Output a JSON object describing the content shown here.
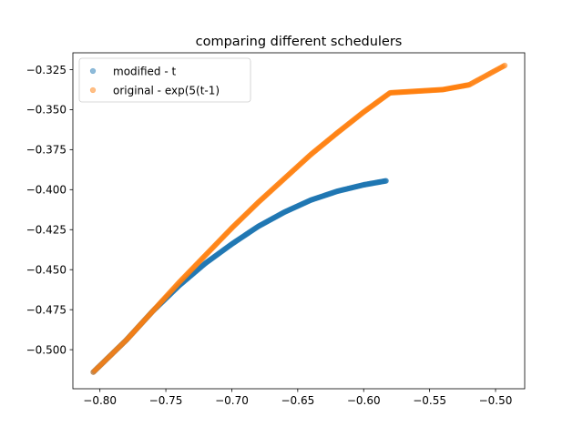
{
  "chart_data": {
    "type": "scatter",
    "title": "comparing different schedulers",
    "xlabel": "",
    "ylabel": "",
    "xlim": [
      -0.8205,
      -0.4779
    ],
    "ylim": [
      -0.5244,
      -0.3145
    ],
    "xticks": [
      -0.8,
      -0.75,
      -0.7,
      -0.65,
      -0.6,
      -0.55,
      -0.5
    ],
    "xtick_labels": [
      "−0.80",
      "−0.75",
      "−0.70",
      "−0.65",
      "−0.60",
      "−0.55",
      "−0.50"
    ],
    "yticks": [
      -0.5,
      -0.475,
      -0.45,
      -0.425,
      -0.4,
      -0.375,
      -0.35,
      -0.325
    ],
    "ytick_labels": [
      "−0.500",
      "−0.475",
      "−0.450",
      "−0.425",
      "−0.400",
      "−0.375",
      "−0.350",
      "−0.325"
    ],
    "grid": false,
    "legend_position": "top-left",
    "series": [
      {
        "name": "modified - t",
        "color": "#1f77b4",
        "curve": [
          [
            -0.805,
            -0.514
          ],
          [
            -0.78,
            -0.494
          ],
          [
            -0.76,
            -0.476
          ],
          [
            -0.74,
            -0.46
          ],
          [
            -0.72,
            -0.446
          ],
          [
            -0.7,
            -0.434
          ],
          [
            -0.68,
            -0.423
          ],
          [
            -0.66,
            -0.414
          ],
          [
            -0.64,
            -0.4065
          ],
          [
            -0.62,
            -0.401
          ],
          [
            -0.6,
            -0.397
          ],
          [
            -0.583,
            -0.3945
          ]
        ]
      },
      {
        "name": "original - exp(5(t-1)",
        "color": "#ff7f0e",
        "curve": [
          [
            -0.805,
            -0.514
          ],
          [
            -0.78,
            -0.494
          ],
          [
            -0.76,
            -0.476
          ],
          [
            -0.74,
            -0.458
          ],
          [
            -0.72,
            -0.441
          ],
          [
            -0.7,
            -0.424
          ],
          [
            -0.68,
            -0.408
          ],
          [
            -0.66,
            -0.393
          ],
          [
            -0.64,
            -0.378
          ],
          [
            -0.62,
            -0.3645
          ],
          [
            -0.6,
            -0.3515
          ],
          [
            -0.58,
            -0.3395
          ],
          [
            -0.56,
            -0.3385
          ],
          [
            -0.54,
            -0.3375
          ],
          [
            -0.52,
            -0.3345
          ],
          [
            -0.493,
            -0.3224
          ]
        ]
      }
    ]
  }
}
